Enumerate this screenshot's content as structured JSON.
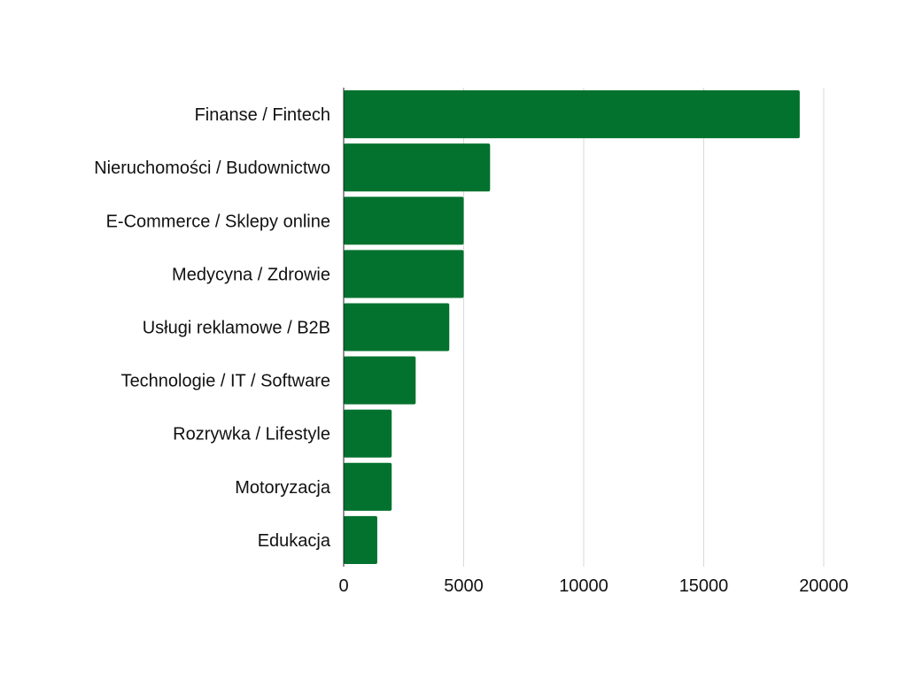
{
  "chart_data": {
    "type": "bar",
    "orientation": "horizontal",
    "categories": [
      "Finanse / Fintech",
      "Nieruchomości / Budownictwo",
      "E-Commerce / Sklepy online",
      "Medycyna / Zdrowie",
      "Usługi reklamowe / B2B",
      "Technologie / IT / Software",
      "Rozrywka / Lifestyle",
      "Motoryzacja",
      "Edukacja"
    ],
    "values": [
      19000,
      6100,
      5000,
      5000,
      4400,
      3000,
      2000,
      2000,
      1400
    ],
    "xlim": [
      0,
      20000
    ],
    "xticks": [
      "0",
      "5000",
      "10000",
      "15000",
      "20000"
    ],
    "tick_values": [
      0,
      5000,
      10000,
      15000,
      20000
    ],
    "title": "",
    "xlabel": "",
    "ylabel": "",
    "grid": "vertical",
    "legend": "none",
    "bar_color": "#02722e"
  }
}
